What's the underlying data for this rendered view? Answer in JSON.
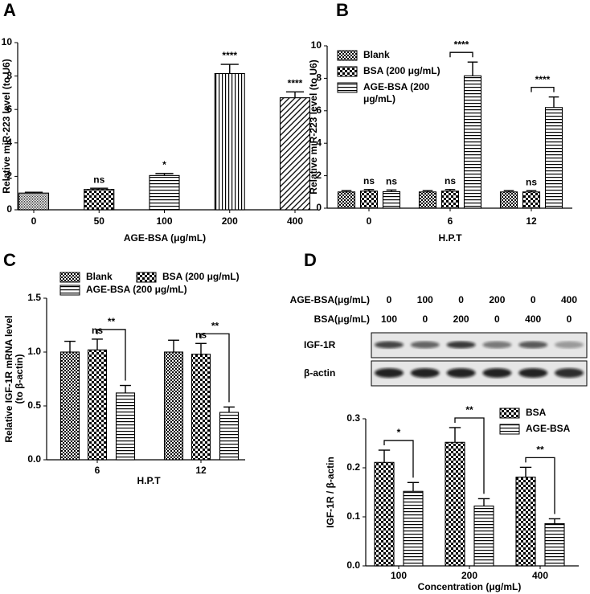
{
  "chart_data": [
    {
      "panel": "A",
      "type": "bar",
      "categories": [
        "0",
        "50",
        "100",
        "200",
        "400"
      ],
      "values": [
        1.0,
        1.22,
        2.05,
        8.15,
        6.7
      ],
      "errors": [
        0.05,
        0.07,
        0.12,
        0.55,
        0.35
      ],
      "significance": [
        null,
        "ns",
        "*",
        "****",
        "****"
      ],
      "patterns": [
        "dense",
        "checker",
        "hlines",
        "vlines",
        "diag"
      ],
      "xlabel": "AGE-BSA  (μg/mL)",
      "ylabel": [
        "Relative miR-223 level (to U6)"
      ],
      "ylim": [
        0,
        10
      ],
      "yticks": [
        0,
        2,
        4,
        6,
        8,
        10
      ]
    },
    {
      "panel": "B",
      "type": "grouped_bar",
      "categories": [
        "0",
        "6",
        "12"
      ],
      "series": [
        {
          "name": "Blank",
          "pattern": "fine-checker",
          "values": [
            1.0,
            1.0,
            1.0
          ],
          "errors": [
            0.08,
            0.08,
            0.08
          ],
          "significance": [
            null,
            null,
            null
          ]
        },
        {
          "name": "BSA (200 μg/mL)",
          "pattern": "checker",
          "values": [
            1.05,
            1.05,
            1.0
          ],
          "errors": [
            0.1,
            0.1,
            0.08
          ],
          "significance": [
            "ns",
            "ns",
            "ns"
          ]
        },
        {
          "name": "AGE-BSA (200 μg/mL)",
          "pattern": "hlines",
          "values": [
            1.02,
            8.15,
            6.2
          ],
          "errors": [
            0.1,
            0.85,
            0.65
          ],
          "significance": [
            "ns",
            null,
            null
          ]
        }
      ],
      "brackets": [
        null,
        "****",
        "****"
      ],
      "xlabel": "H.P.T",
      "ylabel": [
        "Relative miR-223 level (to U6)"
      ],
      "ylim": [
        0,
        10
      ],
      "yticks": [
        0,
        2,
        4,
        6,
        8,
        10
      ]
    },
    {
      "panel": "C",
      "type": "grouped_bar",
      "categories": [
        "6",
        "12"
      ],
      "series": [
        {
          "name": "Blank",
          "pattern": "fine-checker",
          "values": [
            1.0,
            1.0
          ],
          "errors": [
            0.1,
            0.11
          ],
          "significance": [
            null,
            null
          ]
        },
        {
          "name": "BSA (200 μg/mL)",
          "pattern": "checker",
          "values": [
            1.02,
            0.98
          ],
          "errors": [
            0.1,
            0.1
          ],
          "significance": [
            "ns",
            "ns"
          ]
        },
        {
          "name": "AGE-BSA (200 μg/mL)",
          "pattern": "hlines",
          "values": [
            0.62,
            0.44
          ],
          "errors": [
            0.07,
            0.05
          ],
          "significance": [
            null,
            null
          ]
        }
      ],
      "brackets": [
        "**",
        "**"
      ],
      "xlabel": "H.P.T",
      "ylabel": [
        "Relative IGF-1R mRNA level",
        "(to β-actin)"
      ],
      "ylim": [
        0,
        1.5
      ],
      "yticks": [
        {
          "value": 0,
          "label": "0.0"
        },
        0.5,
        {
          "value": 1,
          "label": "1.0"
        },
        1.5
      ]
    },
    {
      "panel": "D",
      "type": "grouped_bar",
      "categories": [
        "100",
        "200",
        "400"
      ],
      "series": [
        {
          "name": "BSA",
          "pattern": "checker",
          "values": [
            0.211,
            0.252,
            0.181
          ],
          "errors": [
            0.025,
            0.03,
            0.02
          ],
          "significance": [
            null,
            null,
            null
          ]
        },
        {
          "name": "AGE-BSA",
          "pattern": "hlines",
          "values": [
            0.152,
            0.122,
            0.086
          ],
          "errors": [
            0.018,
            0.015,
            0.01
          ],
          "significance": [
            null,
            null,
            null
          ]
        }
      ],
      "brackets": [
        "*",
        "**",
        "**"
      ],
      "xlabel": "Concentration (μg/mL)",
      "ylabel": [
        "IGF-1R / β-actin"
      ],
      "ylim": [
        0,
        0.3
      ],
      "yticks": [
        {
          "value": 0,
          "label": "0.0"
        },
        0.1,
        0.2,
        0.3
      ]
    }
  ],
  "blot": {
    "rows": [
      {
        "label": "AGE-BSA(μg/mL)",
        "values": [
          0,
          100,
          0,
          200,
          0,
          400
        ]
      },
      {
        "label": "BSA(μg/mL)",
        "values": [
          100,
          0,
          200,
          0,
          400,
          0
        ]
      }
    ],
    "bands": [
      "IGF-1R",
      "β-actin"
    ]
  }
}
